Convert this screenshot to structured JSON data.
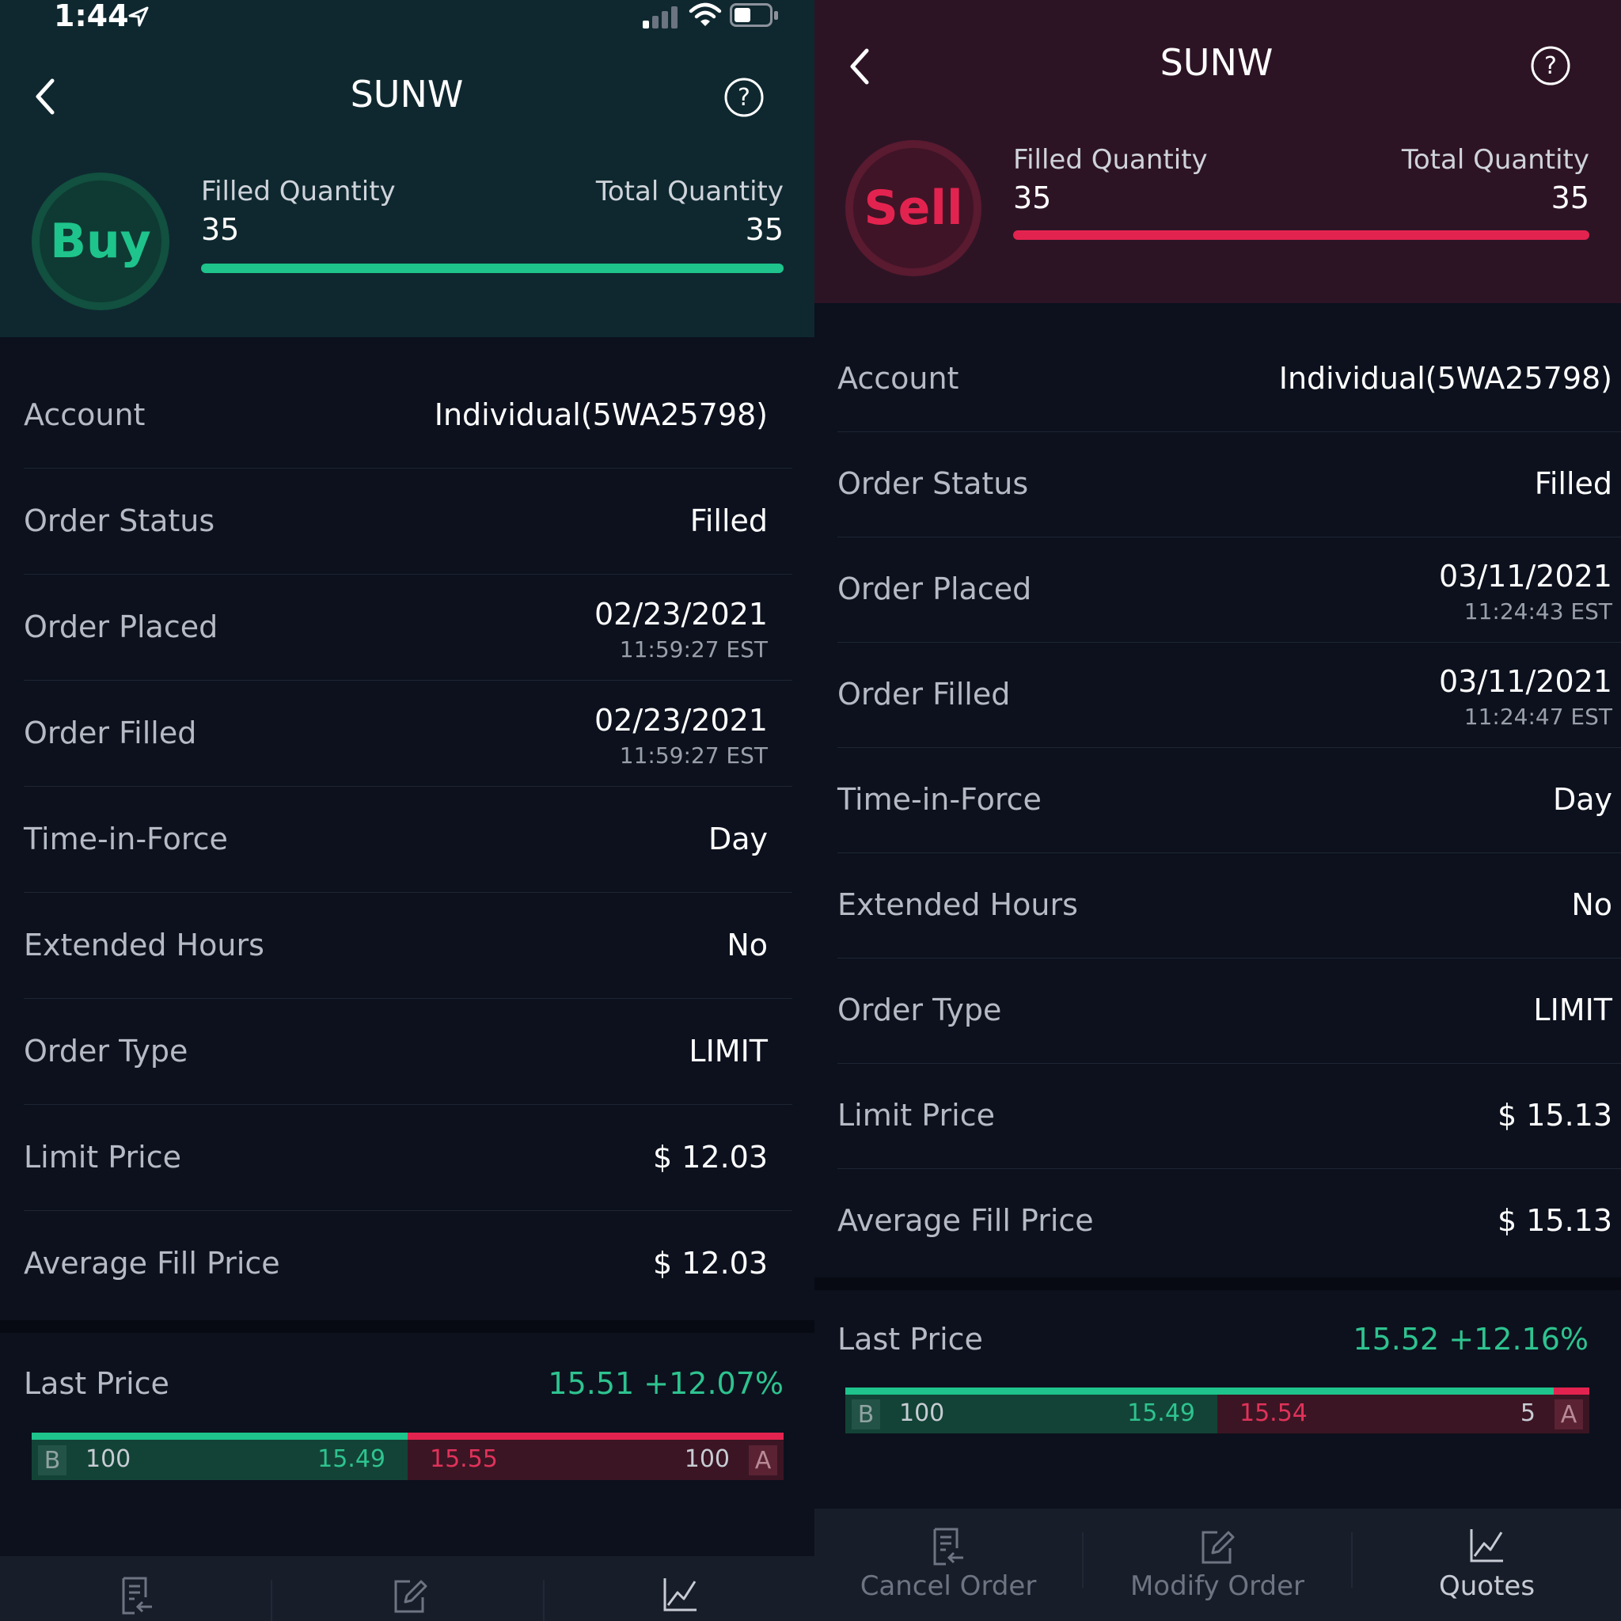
{
  "status_bar": {
    "time": "1:44"
  },
  "left": {
    "title": "SUNW",
    "side": "Buy",
    "filled_label": "Filled Quantity",
    "filled_value": "35",
    "total_label": "Total Quantity",
    "total_value": "35",
    "fill_fraction": 1.0,
    "rows": {
      "account": {
        "label": "Account",
        "value": "Individual(5WA25798)"
      },
      "status": {
        "label": "Order Status",
        "value": "Filled"
      },
      "placed": {
        "label": "Order Placed",
        "date": "02/23/2021",
        "time": "11:59:27 EST"
      },
      "filled": {
        "label": "Order Filled",
        "date": "02/23/2021",
        "time": "11:59:27 EST"
      },
      "tif": {
        "label": "Time-in-Force",
        "value": "Day"
      },
      "ext": {
        "label": "Extended Hours",
        "value": "No"
      },
      "type": {
        "label": "Order Type",
        "value": "LIMIT"
      },
      "limit": {
        "label": "Limit Price",
        "value": "$ 12.03"
      },
      "avg": {
        "label": "Average Fill Price",
        "value": "$ 12.03"
      }
    },
    "last_price": {
      "label": "Last Price",
      "value": "15.51 +12.07%",
      "bid_badge": "B",
      "bid_size": "100",
      "bid_price": "15.49",
      "ask_price": "15.55",
      "ask_size": "100",
      "ask_badge": "A",
      "bid_fraction": 0.5
    }
  },
  "right": {
    "title": "SUNW",
    "side": "Sell",
    "filled_label": "Filled Quantity",
    "filled_value": "35",
    "total_label": "Total Quantity",
    "total_value": "35",
    "fill_fraction": 1.0,
    "rows": {
      "account": {
        "label": "Account",
        "value": "Individual(5WA25798)"
      },
      "status": {
        "label": "Order Status",
        "value": "Filled"
      },
      "placed": {
        "label": "Order Placed",
        "date": "03/11/2021",
        "time": "11:24:43 EST"
      },
      "filled": {
        "label": "Order Filled",
        "date": "03/11/2021",
        "time": "11:24:47 EST"
      },
      "tif": {
        "label": "Time-in-Force",
        "value": "Day"
      },
      "ext": {
        "label": "Extended Hours",
        "value": "No"
      },
      "type": {
        "label": "Order Type",
        "value": "LIMIT"
      },
      "limit": {
        "label": "Limit Price",
        "value": "$ 15.13"
      },
      "avg": {
        "label": "Average Fill Price",
        "value": "$ 15.13"
      }
    },
    "last_price": {
      "label": "Last Price",
      "value": "15.52 +12.16%",
      "bid_badge": "B",
      "bid_size": "100",
      "bid_price": "15.49",
      "ask_price": "15.54",
      "ask_size": "5",
      "ask_badge": "A",
      "bid_fraction": 0.952
    },
    "tabs": {
      "cancel": "Cancel Order",
      "modify": "Modify Order",
      "quotes": "Quotes"
    }
  },
  "colors": {
    "buy_green": "#1ec48b",
    "sell_red": "#e3234f",
    "price_green": "#2ec38f",
    "price_red": "#e0325a"
  },
  "icons": [
    "back-chevron-icon",
    "help-circle-icon",
    "cancel-order-icon",
    "modify-order-icon",
    "quotes-chart-icon",
    "location-arrow-icon",
    "cellular-signal-icon",
    "wifi-icon",
    "battery-icon"
  ]
}
